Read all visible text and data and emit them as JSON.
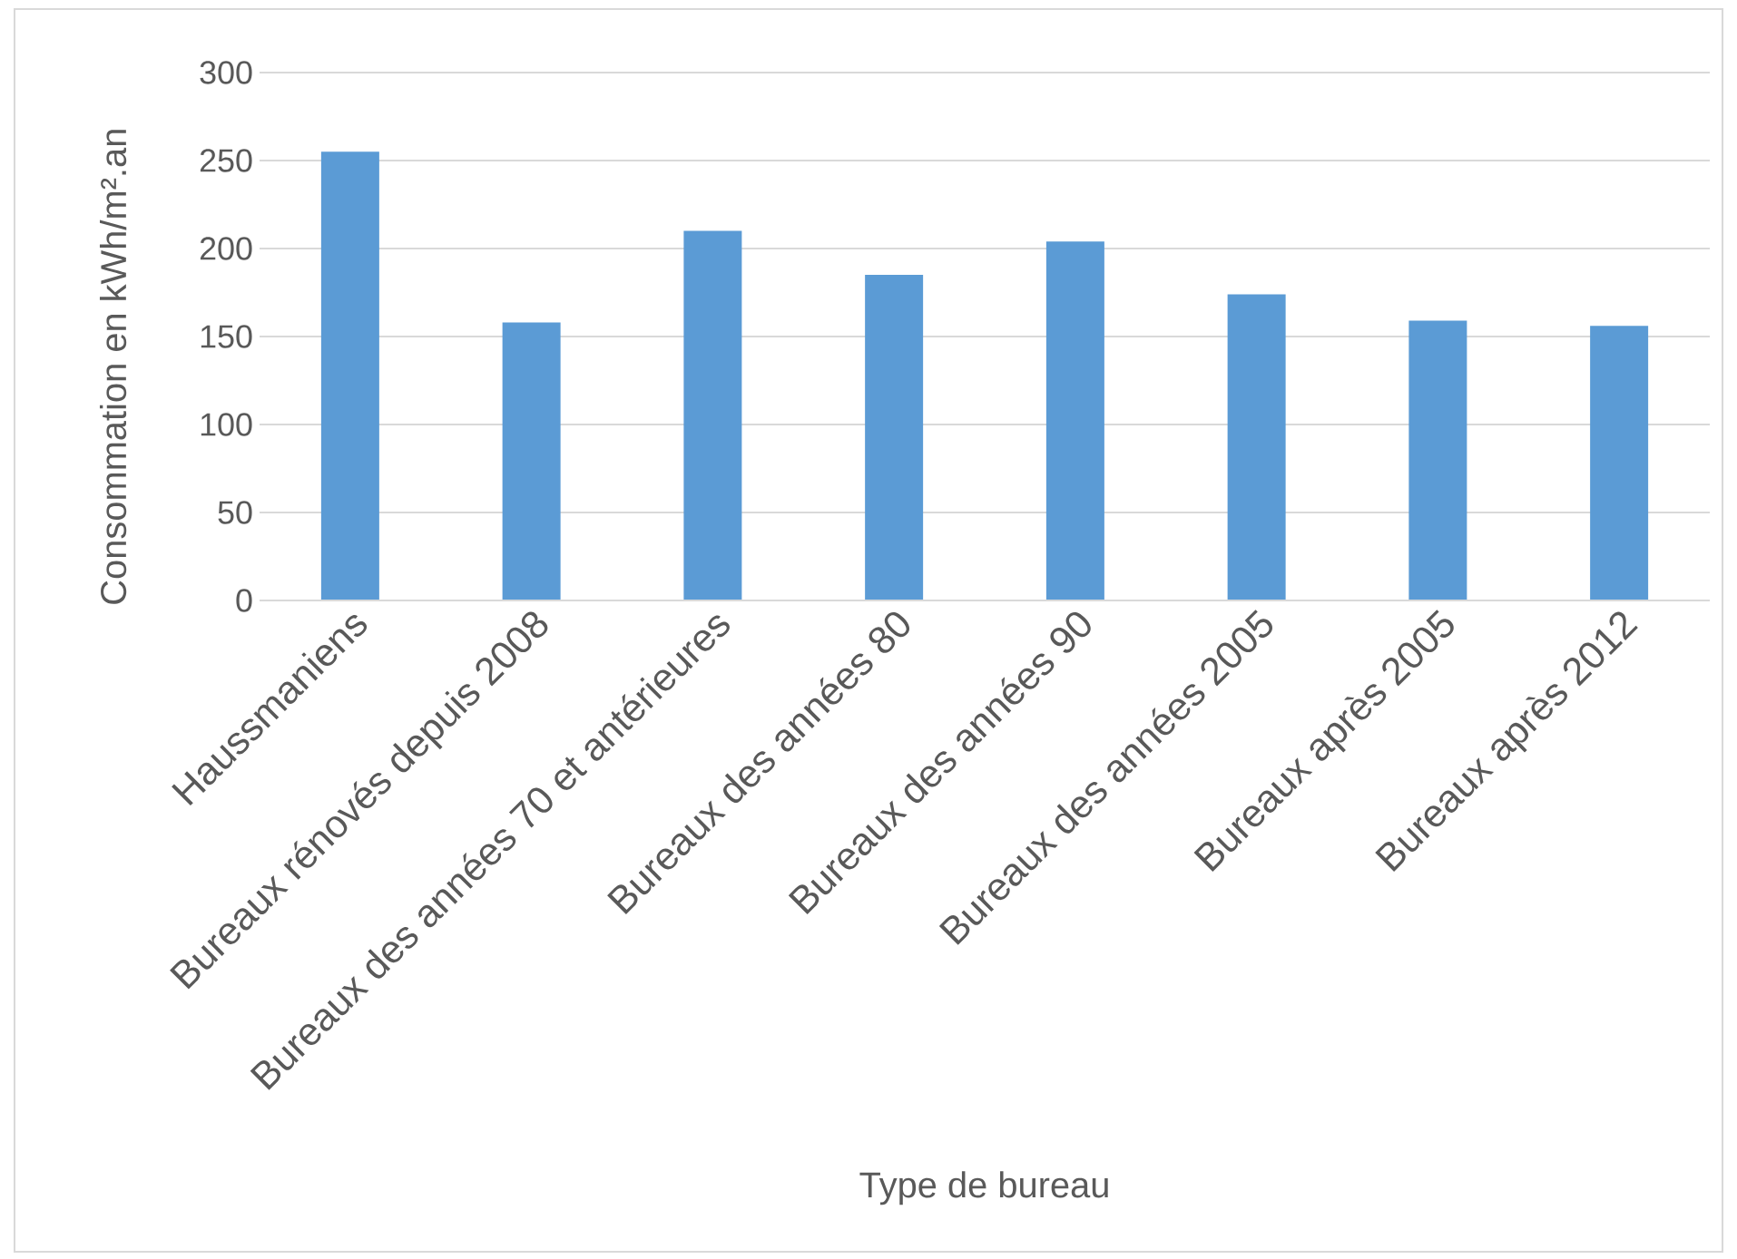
{
  "chart_data": {
    "type": "bar",
    "xlabel": "Type de bureau",
    "ylabel": "Consommation en kWh/m².an",
    "categories": [
      "Haussmaniens",
      "Bureaux rénovés depuis 2008",
      "Bureaux des années 70 et antérieures",
      "Bureaux des années 80",
      "Bureaux des années 90",
      "Bureaux des années 2005",
      "Bureaux après 2005",
      "Bureaux après 2012"
    ],
    "values": [
      255,
      158,
      210,
      185,
      204,
      174,
      159,
      156
    ],
    "color": "#5b9bd5",
    "ylim": [
      0,
      300
    ],
    "yticks": [
      0,
      50,
      100,
      150,
      200,
      250,
      300
    ],
    "grid": "y"
  }
}
